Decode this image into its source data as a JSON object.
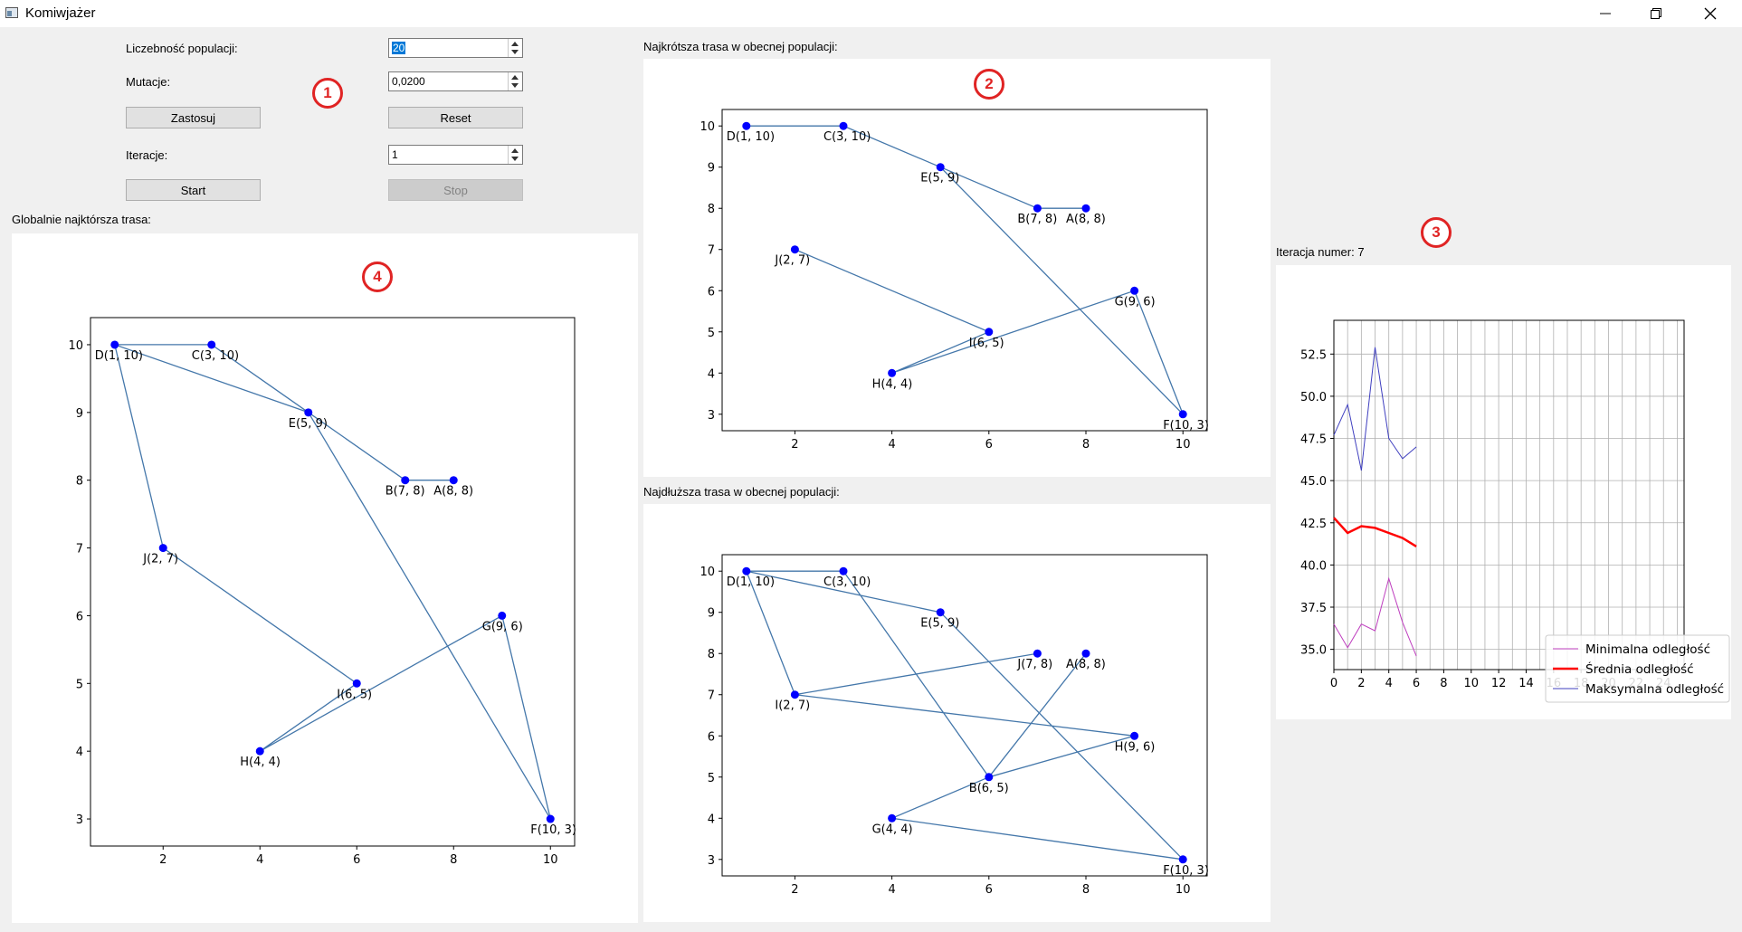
{
  "window": {
    "title": "Komiwjażer",
    "minimize_icon": "minimize-icon",
    "maximize_icon": "restore-icon",
    "close_icon": "close-icon"
  },
  "controls": {
    "population_label": "Liczebność populacji:",
    "population_value": "20",
    "mutation_label": "Mutacje:",
    "mutation_value": "0,0200",
    "apply_button": "Zastosuj",
    "reset_button": "Reset",
    "iterations_label": "Iteracje:",
    "iterations_value": "1",
    "start_button": "Start",
    "stop_button": "Stop"
  },
  "markers": {
    "m1": "1",
    "m2": "2",
    "m3": "3",
    "m4": "4"
  },
  "labels": {
    "global_shortest": "Globalnie najktórsza trasa:",
    "current_shortest": "Najkrótsza trasa w obecnej populacji:",
    "current_longest": "Najdłuższa trasa w obecnej populacji:",
    "iteration": "Iteracja numer: 7"
  },
  "chart_data": [
    {
      "id": "global-route",
      "type": "scatter",
      "xlim": [
        0.5,
        10.5
      ],
      "ylim": [
        2.6,
        10.4
      ],
      "xticks": [
        2,
        4,
        6,
        8,
        10
      ],
      "yticks": [
        3,
        4,
        5,
        6,
        7,
        8,
        9,
        10
      ],
      "points": [
        {
          "label": "D(1, 10)",
          "x": 1,
          "y": 10
        },
        {
          "label": "C(3, 10)",
          "x": 3,
          "y": 10
        },
        {
          "label": "E(5, 9)",
          "x": 5,
          "y": 9
        },
        {
          "label": "B(7, 8)",
          "x": 7,
          "y": 8
        },
        {
          "label": "A(8, 8)",
          "x": 8,
          "y": 8
        },
        {
          "label": "J(2, 7)",
          "x": 2,
          "y": 7
        },
        {
          "label": "G(9, 6)",
          "x": 9,
          "y": 6
        },
        {
          "label": "I(6, 5)",
          "x": 6,
          "y": 5
        },
        {
          "label": "H(4, 4)",
          "x": 4,
          "y": 4
        },
        {
          "label": "F(10, 3)",
          "x": 10,
          "y": 3
        }
      ],
      "route": [
        [
          1,
          10
        ],
        [
          3,
          10
        ],
        [
          5,
          9
        ],
        [
          7,
          8
        ],
        [
          8,
          8
        ],
        [
          7,
          8
        ],
        [
          5,
          9
        ],
        [
          10,
          3
        ],
        [
          9,
          6
        ],
        [
          4,
          4
        ],
        [
          6,
          5
        ],
        [
          2,
          7
        ],
        [
          1,
          10
        ],
        [
          5,
          9
        ]
      ],
      "colors": {
        "line": "#4477aa",
        "point": "#0000ff"
      }
    },
    {
      "id": "current-shortest",
      "type": "scatter",
      "xlim": [
        0.5,
        10.5
      ],
      "ylim": [
        2.6,
        10.4
      ],
      "xticks": [
        2,
        4,
        6,
        8,
        10
      ],
      "yticks": [
        3,
        4,
        5,
        6,
        7,
        8,
        9,
        10
      ],
      "points": [
        {
          "label": "D(1, 10)",
          "x": 1,
          "y": 10
        },
        {
          "label": "C(3, 10)",
          "x": 3,
          "y": 10
        },
        {
          "label": "E(5, 9)",
          "x": 5,
          "y": 9
        },
        {
          "label": "B(7, 8)",
          "x": 7,
          "y": 8
        },
        {
          "label": "A(8, 8)",
          "x": 8,
          "y": 8
        },
        {
          "label": "J(2, 7)",
          "x": 2,
          "y": 7
        },
        {
          "label": "G(9, 6)",
          "x": 9,
          "y": 6
        },
        {
          "label": "I(6, 5)",
          "x": 6,
          "y": 5
        },
        {
          "label": "H(4, 4)",
          "x": 4,
          "y": 4
        },
        {
          "label": "F(10, 3)",
          "x": 10,
          "y": 3
        }
      ],
      "route": [
        [
          1,
          10
        ],
        [
          3,
          10
        ],
        [
          5,
          9
        ],
        [
          7,
          8
        ],
        [
          8,
          8
        ],
        [
          7,
          8
        ],
        [
          5,
          9
        ],
        [
          10,
          3
        ],
        [
          9,
          6
        ],
        [
          4,
          4
        ],
        [
          6,
          5
        ],
        [
          2,
          7
        ]
      ],
      "colors": {
        "line": "#4477aa",
        "point": "#0000ff"
      }
    },
    {
      "id": "current-longest",
      "type": "scatter",
      "xlim": [
        0.5,
        10.5
      ],
      "ylim": [
        2.6,
        10.4
      ],
      "xticks": [
        2,
        4,
        6,
        8,
        10
      ],
      "yticks": [
        3,
        4,
        5,
        6,
        7,
        8,
        9,
        10
      ],
      "points": [
        {
          "label": "D(1, 10)",
          "x": 1,
          "y": 10
        },
        {
          "label": "C(3, 10)",
          "x": 3,
          "y": 10
        },
        {
          "label": "E(5, 9)",
          "x": 5,
          "y": 9
        },
        {
          "label": "J(7, 8)",
          "x": 7,
          "y": 8
        },
        {
          "label": "A(8, 8)",
          "x": 8,
          "y": 8
        },
        {
          "label": "I(2, 7)",
          "x": 2,
          "y": 7
        },
        {
          "label": "H(9, 6)",
          "x": 9,
          "y": 6
        },
        {
          "label": "B(6, 5)",
          "x": 6,
          "y": 5
        },
        {
          "label": "G(4, 4)",
          "x": 4,
          "y": 4
        },
        {
          "label": "F(10, 3)",
          "x": 10,
          "y": 3
        }
      ],
      "route": [
        [
          1,
          10
        ],
        [
          3,
          10
        ],
        [
          6,
          5
        ],
        [
          8,
          8
        ],
        [
          6,
          5
        ],
        [
          9,
          6
        ],
        [
          2,
          7
        ],
        [
          7,
          8
        ],
        [
          2,
          7
        ],
        [
          1,
          10
        ],
        [
          5,
          9
        ],
        [
          10,
          3
        ],
        [
          4,
          4
        ],
        [
          6,
          5
        ]
      ],
      "colors": {
        "line": "#4477aa",
        "point": "#0000ff"
      }
    },
    {
      "id": "distance-history",
      "type": "line",
      "xlim": [
        0,
        25.5
      ],
      "ylim": [
        33.8,
        54.5
      ],
      "xticks": [
        0,
        2,
        4,
        6,
        8,
        10,
        12,
        14,
        16,
        18,
        20,
        22,
        24
      ],
      "yticks": [
        35.0,
        37.5,
        40.0,
        42.5,
        45.0,
        47.5,
        50.0,
        52.5
      ],
      "ytick_labels": [
        "35.0",
        "37.5",
        "40.0",
        "42.5",
        "45.0",
        "47.5",
        "50.0",
        "52.5"
      ],
      "grid": true,
      "legend_position": "bottom-right",
      "x": [
        0,
        1,
        2,
        3,
        4,
        5,
        6
      ],
      "series": [
        {
          "name": "Minimalna odległość",
          "values": [
            36.5,
            35.1,
            36.5,
            36.1,
            39.2,
            36.6,
            34.6
          ],
          "color": "#bf3fbf",
          "width": 1
        },
        {
          "name": "Średnia odległość",
          "values": [
            42.8,
            41.9,
            42.3,
            42.2,
            41.9,
            41.6,
            41.1
          ],
          "color": "#ff0000",
          "width": 2.5
        },
        {
          "name": "Maksymalna odległość",
          "values": [
            47.7,
            49.5,
            45.6,
            52.9,
            47.5,
            46.3,
            47.0
          ],
          "color": "#3f3fbf",
          "width": 1
        }
      ]
    }
  ]
}
